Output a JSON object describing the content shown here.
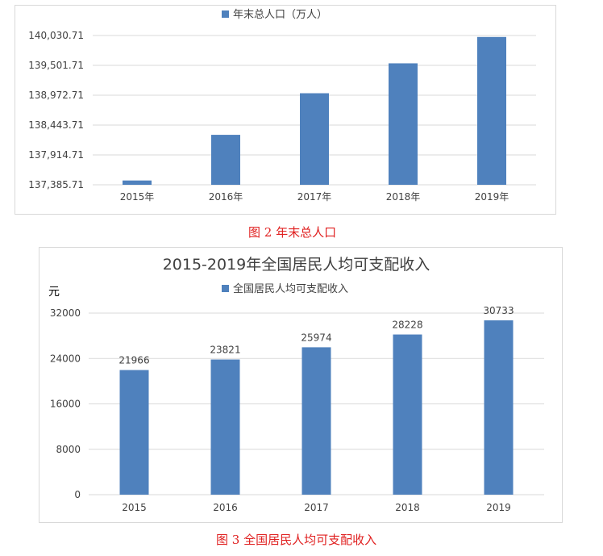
{
  "colors": {
    "bar": "#4f81bd",
    "grid": "#d9d9d9",
    "caption": "#e02020"
  },
  "chart_data": [
    {
      "type": "bar",
      "title": "",
      "legend": "年末总人口（万人）",
      "legend_placement": "top",
      "grid": true,
      "categories": [
        "2015年",
        "2016年",
        "2017年",
        "2018年",
        "2019年"
      ],
      "series": [
        {
          "name": "年末总人口（万人）",
          "values": [
            137462,
            138271,
            139008,
            139538,
            140005
          ]
        }
      ],
      "yticks": [
        "137,385.71",
        "137,914.71",
        "138,443.71",
        "138,972.71",
        "139,501.71",
        "140,030.71"
      ],
      "ylim": [
        137385.71,
        140030.71
      ],
      "caption": "图 2  年末总人口"
    },
    {
      "type": "bar",
      "title": "2015-2019年全国居民人均可支配收入",
      "ylabel": "元",
      "legend": "全国居民人均可支配收入",
      "legend_placement": "top",
      "grid": true,
      "categories": [
        "2015",
        "2016",
        "2017",
        "2018",
        "2019"
      ],
      "series": [
        {
          "name": "全国居民人均可支配收入",
          "values": [
            21966,
            23821,
            25974,
            28228,
            30733
          ]
        }
      ],
      "data_labels": [
        "21966",
        "23821",
        "25974",
        "28228",
        "30733"
      ],
      "yticks": [
        "0",
        "8000",
        "16000",
        "24000",
        "32000"
      ],
      "ylim": [
        0,
        32000
      ],
      "caption": "图 3  全国居民人均可支配收入"
    }
  ]
}
